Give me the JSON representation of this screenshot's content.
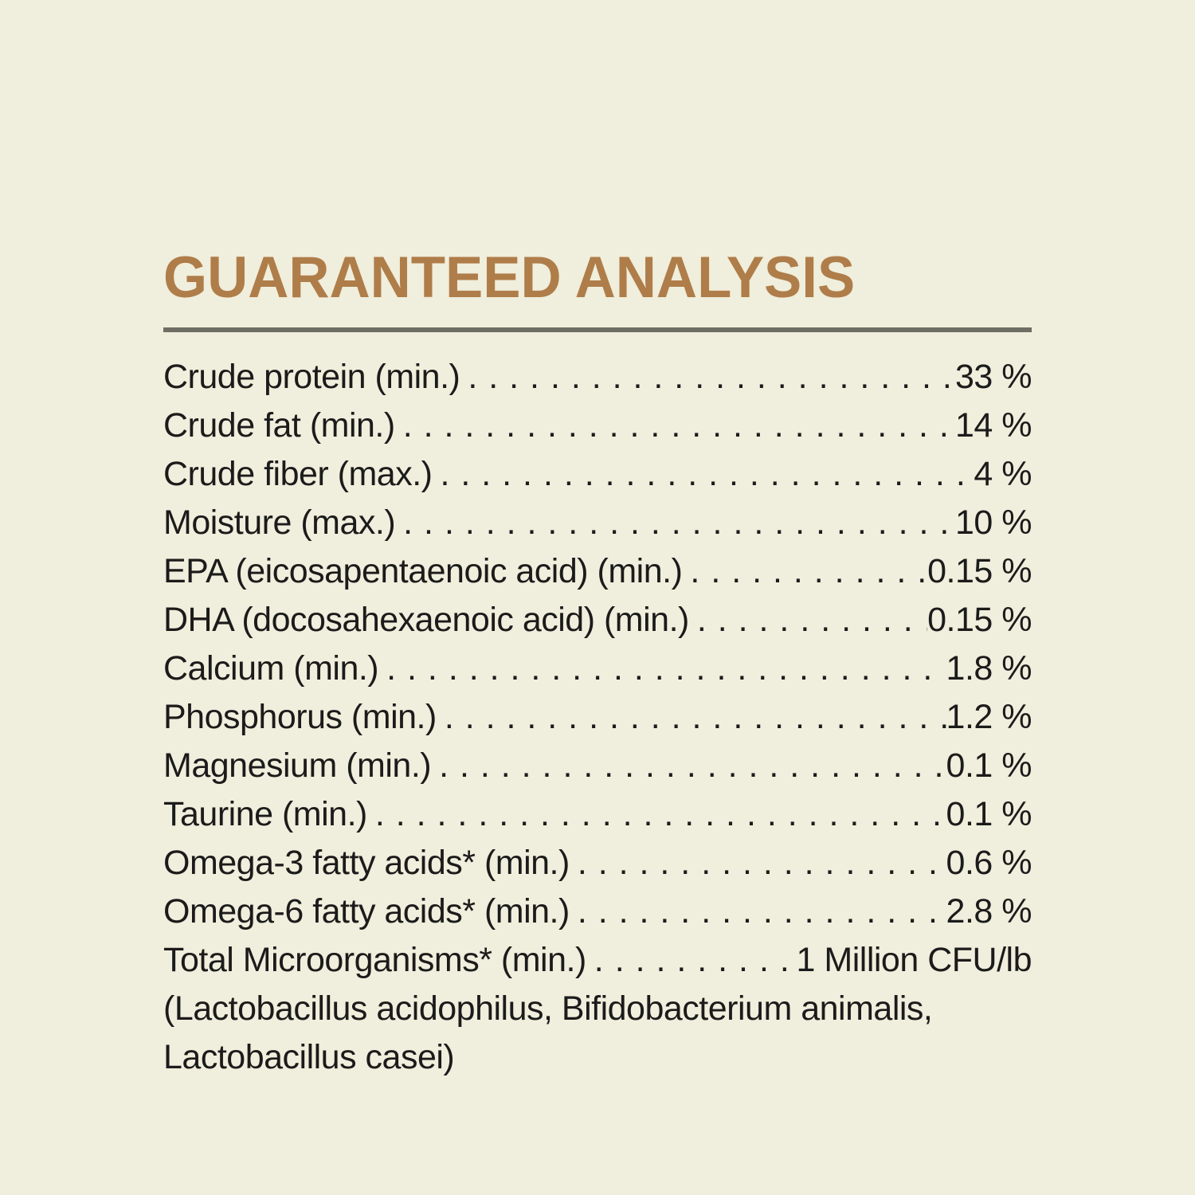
{
  "page": {
    "background_color": "#f0eedc",
    "text_color": "#1b1b1b"
  },
  "header": {
    "title": "GUARANTEED ANALYSIS",
    "title_color": "#af7d49",
    "rule_color": "#6e6e64"
  },
  "analysis": {
    "rows": [
      {
        "label": "Crude protein (min.)",
        "value": "33 %"
      },
      {
        "label": "Crude fat (min.)",
        "value": "14 %"
      },
      {
        "label": "Crude fiber (max.)",
        "value": "4 %"
      },
      {
        "label": "Moisture (max.)",
        "value": "10 %"
      },
      {
        "label": "EPA (eicosapentaenoic acid) (min.)",
        "value": "0.15 %"
      },
      {
        "label": "DHA (docosahexaenoic acid) (min.)",
        "value": "0.15 %"
      },
      {
        "label": "Calcium (min.)",
        "value": "1.8 %"
      },
      {
        "label": "Phosphorus (min.)",
        "value": "1.2 %"
      },
      {
        "label": "Magnesium (min.)",
        "value": "0.1 %"
      },
      {
        "label": "Taurine (min.)",
        "value": "0.1 %"
      },
      {
        "label": "Omega-3 fatty acids* (min.)",
        "value": "0.6 %"
      },
      {
        "label": "Omega-6 fatty acids* (min.)",
        "value": "2.8 %"
      },
      {
        "label": "Total Microorganisms* (min.)",
        "value": "1 Million CFU/lb"
      }
    ],
    "note_lines": [
      "(Lactobacillus acidophilus, Bifidobacterium animalis,",
      "Lactobacillus casei)"
    ]
  }
}
